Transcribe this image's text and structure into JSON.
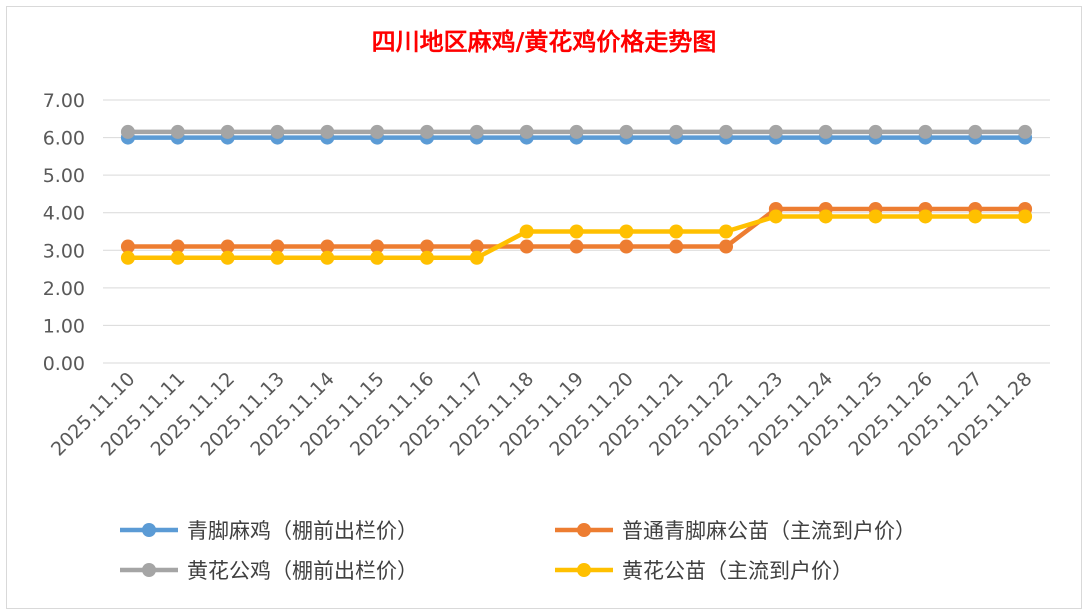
{
  "chart_data": {
    "type": "line",
    "title": "四川地区麻鸡/黄花鸡价格走势图",
    "categories": [
      "2025.11.10",
      "2025.11.11",
      "2025.11.12",
      "2025.11.13",
      "2025.11.14",
      "2025.11.15",
      "2025.11.16",
      "2025.11.17",
      "2025.11.18",
      "2025.11.19",
      "2025.11.20",
      "2025.11.21",
      "2025.11.22",
      "2025.11.23",
      "2025.11.24",
      "2025.11.25",
      "2025.11.26",
      "2025.11.27",
      "2025.11.28"
    ],
    "yticks": [
      "7.00",
      "6.00",
      "5.00",
      "4.00",
      "3.00",
      "2.00",
      "1.00",
      "0.00"
    ],
    "ylim": [
      0,
      7
    ],
    "grid": true,
    "legend_position": "bottom",
    "series": [
      {
        "name": "青脚麻鸡（棚前出栏价）",
        "color": "#5b9bd5",
        "values": [
          6,
          6,
          6,
          6,
          6,
          6,
          6,
          6,
          6,
          6,
          6,
          6,
          6,
          6,
          6,
          6,
          6,
          6,
          6
        ]
      },
      {
        "name": "普通青脚麻公苗（主流到户价）",
        "color": "#ed7d31",
        "values": [
          3.1,
          3.1,
          3.1,
          3.1,
          3.1,
          3.1,
          3.1,
          3.1,
          3.1,
          3.1,
          3.1,
          3.1,
          3.1,
          4.1,
          4.1,
          4.1,
          4.1,
          4.1,
          4.1
        ]
      },
      {
        "name": "黄花公鸡（棚前出栏价）",
        "color": "#a5a5a5",
        "values": [
          6.15,
          6.15,
          6.15,
          6.15,
          6.15,
          6.15,
          6.15,
          6.15,
          6.15,
          6.15,
          6.15,
          6.15,
          6.15,
          6.15,
          6.15,
          6.15,
          6.15,
          6.15,
          6.15
        ]
      },
      {
        "name": "黄花公苗（主流到户价）",
        "color": "#ffc000",
        "values": [
          2.8,
          2.8,
          2.8,
          2.8,
          2.8,
          2.8,
          2.8,
          2.8,
          3.5,
          3.5,
          3.5,
          3.5,
          3.5,
          3.9,
          3.9,
          3.9,
          3.9,
          3.9,
          3.9
        ]
      }
    ]
  }
}
